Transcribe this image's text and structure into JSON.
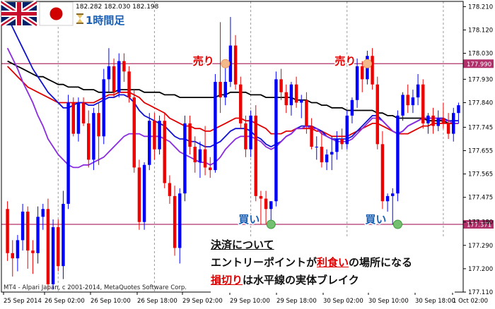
{
  "header": {
    "prices": "182.282 182.030 182.198",
    "timeframe": "1時間足",
    "flag_left": "uk-flag",
    "flag_right": "japan-flag",
    "hourglass_icon": "hourglass-icon"
  },
  "credit": "MT4 - Alpari Japan, c 2001-2014, MetaQuotes Software Corp.",
  "annotations": {
    "sell_1": "売り",
    "sell_2": "売り",
    "buy_1": "買い",
    "buy_2": "買い"
  },
  "caption": {
    "line1": "決済について",
    "line2_prefix": "エントリーポイントが",
    "line2_hl": "利食い",
    "line2_suffix": "の場所になる",
    "line3_hl": "損切り",
    "line3_suffix": "は水平線の実体ブレイク"
  },
  "colors": {
    "bull": "#0000ff",
    "bear": "#ee0000",
    "hline": "#b0306a",
    "ma_black": "#000000",
    "ma_red": "#e00000",
    "ma_blue": "#1010d0",
    "ma_purple": "#8a2be2",
    "grid": "#c8c8c8"
  },
  "chart_data": {
    "type": "candlestick",
    "y_ticks": [
      "178.210",
      "178.120",
      "178.030",
      "177.930",
      "177.840",
      "177.745",
      "177.655",
      "177.565",
      "177.475",
      "177.380",
      "177.290",
      "177.200",
      "177.110"
    ],
    "ylim": [
      177.11,
      178.23
    ],
    "x_ticks": [
      "25 Sep 2014",
      "26 Sep 02:00",
      "26 Sep 10:00",
      "26 Sep 18:00",
      "29 Sep 02:00",
      "29 Sep 10:00",
      "29 Sep 18:00",
      "30 Sep 02:00",
      "30 Sep 10:00",
      "30 Sep 18:00",
      "1 Oct 02:00"
    ],
    "horizontal_lines": [
      {
        "value": 177.99,
        "label": "177.990"
      },
      {
        "value": 177.371,
        "label": "177.371"
      }
    ],
    "markers": [
      {
        "kind": "sell",
        "bar": 43,
        "value": 177.99
      },
      {
        "kind": "sell",
        "bar": 71,
        "value": 177.99
      },
      {
        "kind": "buy",
        "bar": 52,
        "value": 177.371
      },
      {
        "kind": "buy",
        "bar": 77,
        "value": 177.371
      }
    ],
    "candles": [
      [
        177.43,
        177.46,
        177.23,
        177.26
      ],
      [
        177.26,
        177.31,
        177.17,
        177.24
      ],
      [
        177.24,
        177.33,
        177.19,
        177.31
      ],
      [
        177.31,
        177.45,
        177.27,
        177.42
      ],
      [
        177.42,
        177.44,
        177.2,
        177.27
      ],
      [
        177.27,
        177.31,
        177.18,
        177.26
      ],
      [
        177.26,
        177.44,
        177.22,
        177.4
      ],
      [
        177.4,
        177.45,
        177.35,
        177.43
      ],
      [
        177.43,
        177.47,
        177.12,
        177.14
      ],
      [
        177.14,
        177.39,
        177.12,
        177.36
      ],
      [
        177.36,
        177.39,
        177.19,
        177.21
      ],
      [
        177.21,
        177.5,
        177.16,
        177.45
      ],
      [
        177.45,
        177.87,
        177.43,
        177.84
      ],
      [
        177.84,
        177.86,
        177.71,
        177.72
      ],
      [
        177.72,
        177.86,
        177.69,
        177.84
      ],
      [
        177.84,
        177.86,
        177.75,
        177.76
      ],
      [
        177.76,
        177.81,
        177.59,
        177.62
      ],
      [
        177.62,
        177.82,
        177.58,
        177.8
      ],
      [
        177.8,
        177.84,
        177.6,
        177.71
      ],
      [
        177.71,
        177.97,
        177.68,
        177.93
      ],
      [
        177.93,
        178.05,
        177.88,
        177.98
      ],
      [
        177.98,
        178.01,
        177.86,
        177.88
      ],
      [
        177.88,
        178.03,
        177.86,
        178.0
      ],
      [
        178.0,
        178.03,
        177.92,
        177.96
      ],
      [
        177.96,
        177.98,
        177.84,
        177.86
      ],
      [
        177.86,
        177.89,
        177.57,
        177.59
      ],
      [
        177.59,
        177.62,
        177.35,
        177.38
      ],
      [
        177.38,
        177.61,
        177.35,
        177.6
      ],
      [
        177.6,
        177.8,
        177.58,
        177.77
      ],
      [
        177.77,
        177.8,
        177.62,
        177.66
      ],
      [
        177.66,
        177.79,
        177.64,
        177.77
      ],
      [
        177.77,
        177.8,
        177.51,
        177.53
      ],
      [
        177.53,
        177.56,
        177.45,
        177.48
      ],
      [
        177.48,
        177.52,
        177.25,
        177.28
      ],
      [
        177.28,
        177.51,
        177.22,
        177.49
      ],
      [
        177.49,
        177.79,
        177.46,
        177.76
      ],
      [
        177.76,
        177.79,
        177.64,
        177.67
      ],
      [
        177.67,
        177.71,
        177.57,
        177.61
      ],
      [
        177.61,
        177.69,
        177.55,
        177.66
      ],
      [
        177.66,
        177.75,
        177.56,
        177.59
      ],
      [
        177.59,
        177.63,
        177.55,
        177.58
      ],
      [
        177.58,
        177.95,
        177.57,
        177.92
      ],
      [
        177.92,
        178.15,
        177.8,
        177.86
      ],
      [
        177.86,
        177.99,
        177.83,
        177.92
      ],
      [
        177.92,
        178.17,
        177.9,
        178.06
      ],
      [
        178.06,
        178.1,
        177.89,
        177.91
      ],
      [
        177.91,
        177.94,
        177.74,
        177.76
      ],
      [
        177.76,
        177.79,
        177.63,
        177.66
      ],
      [
        177.66,
        177.81,
        177.63,
        177.79
      ],
      [
        177.79,
        177.83,
        177.46,
        177.48
      ],
      [
        177.48,
        177.5,
        177.37,
        177.47
      ],
      [
        177.47,
        177.5,
        177.37,
        177.43
      ],
      [
        177.43,
        177.46,
        177.37,
        177.46
      ],
      [
        177.46,
        177.96,
        177.44,
        177.93
      ],
      [
        177.93,
        177.97,
        177.85,
        177.88
      ],
      [
        177.88,
        177.91,
        177.8,
        177.83
      ],
      [
        177.83,
        177.92,
        177.79,
        177.91
      ],
      [
        177.91,
        177.94,
        177.82,
        177.84
      ],
      [
        177.84,
        177.87,
        177.78,
        177.85
      ],
      [
        177.85,
        177.88,
        177.72,
        177.75
      ],
      [
        177.75,
        177.78,
        177.66,
        177.67
      ],
      [
        177.67,
        177.71,
        177.62,
        177.67
      ],
      [
        177.67,
        177.73,
        177.59,
        177.61
      ],
      [
        177.61,
        177.66,
        177.58,
        177.64
      ],
      [
        177.64,
        177.71,
        177.58,
        177.65
      ],
      [
        177.65,
        177.73,
        177.62,
        177.7
      ],
      [
        177.7,
        177.74,
        177.66,
        177.68
      ],
      [
        177.68,
        177.81,
        177.66,
        177.79
      ],
      [
        177.79,
        177.86,
        177.76,
        177.85
      ],
      [
        177.85,
        178.01,
        177.82,
        177.98
      ],
      [
        177.98,
        178.0,
        177.88,
        177.93
      ],
      [
        177.93,
        178.04,
        177.91,
        178.02
      ],
      [
        178.02,
        178.05,
        177.89,
        177.91
      ],
      [
        177.91,
        177.94,
        177.66,
        177.68
      ],
      [
        177.68,
        177.73,
        177.43,
        177.46
      ],
      [
        177.46,
        177.49,
        177.42,
        177.48
      ],
      [
        177.48,
        177.51,
        177.37,
        177.49
      ],
      [
        177.49,
        177.81,
        177.46,
        177.79
      ],
      [
        177.79,
        177.88,
        177.77,
        177.87
      ],
      [
        177.87,
        177.91,
        177.8,
        177.83
      ],
      [
        177.83,
        177.89,
        177.8,
        177.86
      ],
      [
        177.86,
        177.95,
        177.83,
        177.91
      ],
      [
        177.91,
        177.93,
        177.74,
        177.76
      ],
      [
        177.76,
        177.8,
        177.72,
        177.79
      ],
      [
        177.79,
        177.82,
        177.72,
        177.75
      ],
      [
        177.75,
        177.81,
        177.73,
        177.78
      ],
      [
        177.78,
        177.84,
        177.74,
        177.76
      ],
      [
        177.76,
        177.8,
        177.7,
        177.72
      ],
      [
        177.72,
        177.82,
        177.69,
        177.8
      ],
      [
        177.8,
        177.84,
        177.76,
        177.83
      ]
    ],
    "moving_averages": [
      {
        "color": "black",
        "values": [
          178.0,
          177.99,
          177.98,
          177.97,
          177.96,
          177.95,
          177.94,
          177.94,
          177.93,
          177.92,
          177.91,
          177.91,
          177.9,
          177.9,
          177.9,
          177.89,
          177.89,
          177.89,
          177.88,
          177.88,
          177.88,
          177.88,
          177.89,
          177.89,
          177.89,
          177.89,
          177.89,
          177.88,
          177.88,
          177.88,
          177.88,
          177.87,
          177.87,
          177.87,
          177.86,
          177.86,
          177.86,
          177.86,
          177.86,
          177.86,
          177.86,
          177.86,
          177.87,
          177.87,
          177.88,
          177.88,
          177.88,
          177.88,
          177.87,
          177.87,
          177.87,
          177.86,
          177.86,
          177.86,
          177.86,
          177.86,
          177.86,
          177.85,
          177.85,
          177.85,
          177.84,
          177.84,
          177.83,
          177.83,
          177.82,
          177.82,
          177.82,
          177.81,
          177.81,
          177.81,
          177.81,
          177.81,
          177.81,
          177.8,
          177.8,
          177.79,
          177.79,
          177.78,
          177.78,
          177.78,
          177.78,
          177.78,
          177.78,
          177.77,
          177.77,
          177.77,
          177.77,
          177.76,
          177.76,
          177.76
        ]
      },
      {
        "color": "red",
        "values": [
          177.98,
          177.96,
          177.94,
          177.92,
          177.9,
          177.89,
          177.88,
          177.87,
          177.86,
          177.85,
          177.84,
          177.84,
          177.84,
          177.84,
          177.84,
          177.84,
          177.84,
          177.84,
          177.85,
          177.86,
          177.87,
          177.87,
          177.88,
          177.88,
          177.88,
          177.87,
          177.86,
          177.84,
          177.83,
          177.82,
          177.81,
          177.8,
          177.78,
          177.77,
          177.76,
          177.75,
          177.75,
          177.74,
          177.74,
          177.73,
          177.73,
          177.74,
          177.75,
          177.76,
          177.77,
          177.78,
          177.78,
          177.77,
          177.77,
          177.76,
          177.75,
          177.74,
          177.72,
          177.72,
          177.72,
          177.73,
          177.73,
          177.74,
          177.74,
          177.74,
          177.74,
          177.73,
          177.73,
          177.72,
          177.71,
          177.71,
          177.71,
          177.71,
          177.72,
          177.73,
          177.74,
          177.75,
          177.76,
          177.76,
          177.75,
          177.74,
          177.73,
          177.72,
          177.72,
          177.72,
          177.73,
          177.74,
          177.75,
          177.75,
          177.76,
          177.76,
          177.76,
          177.76,
          177.76,
          177.76
        ]
      },
      {
        "color": "blue",
        "values": [
          178.17,
          178.13,
          178.09,
          178.05,
          178.01,
          177.97,
          177.94,
          177.91,
          177.88,
          177.86,
          177.84,
          177.82,
          177.82,
          177.83,
          177.84,
          177.84,
          177.83,
          177.83,
          177.84,
          177.85,
          177.86,
          177.86,
          177.87,
          177.87,
          177.86,
          177.84,
          177.81,
          177.79,
          177.78,
          177.77,
          177.76,
          177.75,
          177.73,
          177.71,
          177.7,
          177.7,
          177.69,
          177.69,
          177.68,
          177.67,
          177.67,
          177.68,
          177.69,
          177.71,
          177.73,
          177.74,
          177.74,
          177.74,
          177.73,
          177.71,
          177.7,
          177.68,
          177.67,
          177.68,
          177.69,
          177.71,
          177.72,
          177.74,
          177.75,
          177.75,
          177.75,
          177.74,
          177.73,
          177.71,
          177.7,
          177.7,
          177.7,
          177.7,
          177.71,
          177.73,
          177.75,
          177.77,
          177.79,
          177.79,
          177.77,
          177.75,
          177.73,
          177.72,
          177.73,
          177.75,
          177.76,
          177.77,
          177.78,
          177.78,
          177.78,
          177.78,
          177.78,
          177.77,
          177.77,
          177.77
        ]
      },
      {
        "color": "purple",
        "values": [
          178.05,
          178.01,
          177.97,
          177.92,
          177.88,
          177.84,
          177.79,
          177.75,
          177.7,
          177.67,
          177.64,
          177.62,
          177.6,
          177.59,
          177.59,
          177.6,
          177.6,
          177.61,
          177.62,
          177.63,
          177.65,
          177.67,
          177.69,
          177.71,
          177.72,
          177.72,
          177.72,
          177.71,
          177.71,
          177.71,
          177.71,
          177.7,
          177.69,
          177.67,
          177.65,
          177.64,
          177.63,
          177.62,
          177.61,
          177.61,
          177.6,
          177.61,
          177.63,
          177.66,
          177.68,
          177.7,
          177.71,
          177.71,
          177.71,
          177.7,
          177.69,
          177.67,
          177.66,
          177.67,
          177.69,
          177.71,
          177.72,
          177.74,
          177.74,
          177.75,
          177.74,
          177.74,
          177.72,
          177.71,
          177.7,
          177.69,
          177.69,
          177.69,
          177.7,
          177.72,
          177.74,
          177.76,
          177.78,
          177.78,
          177.77,
          177.75,
          177.73,
          177.72,
          177.73,
          177.75,
          177.76,
          177.77,
          177.78,
          177.78,
          177.78,
          177.78,
          177.77,
          177.77,
          177.76,
          177.76
        ]
      }
    ]
  }
}
